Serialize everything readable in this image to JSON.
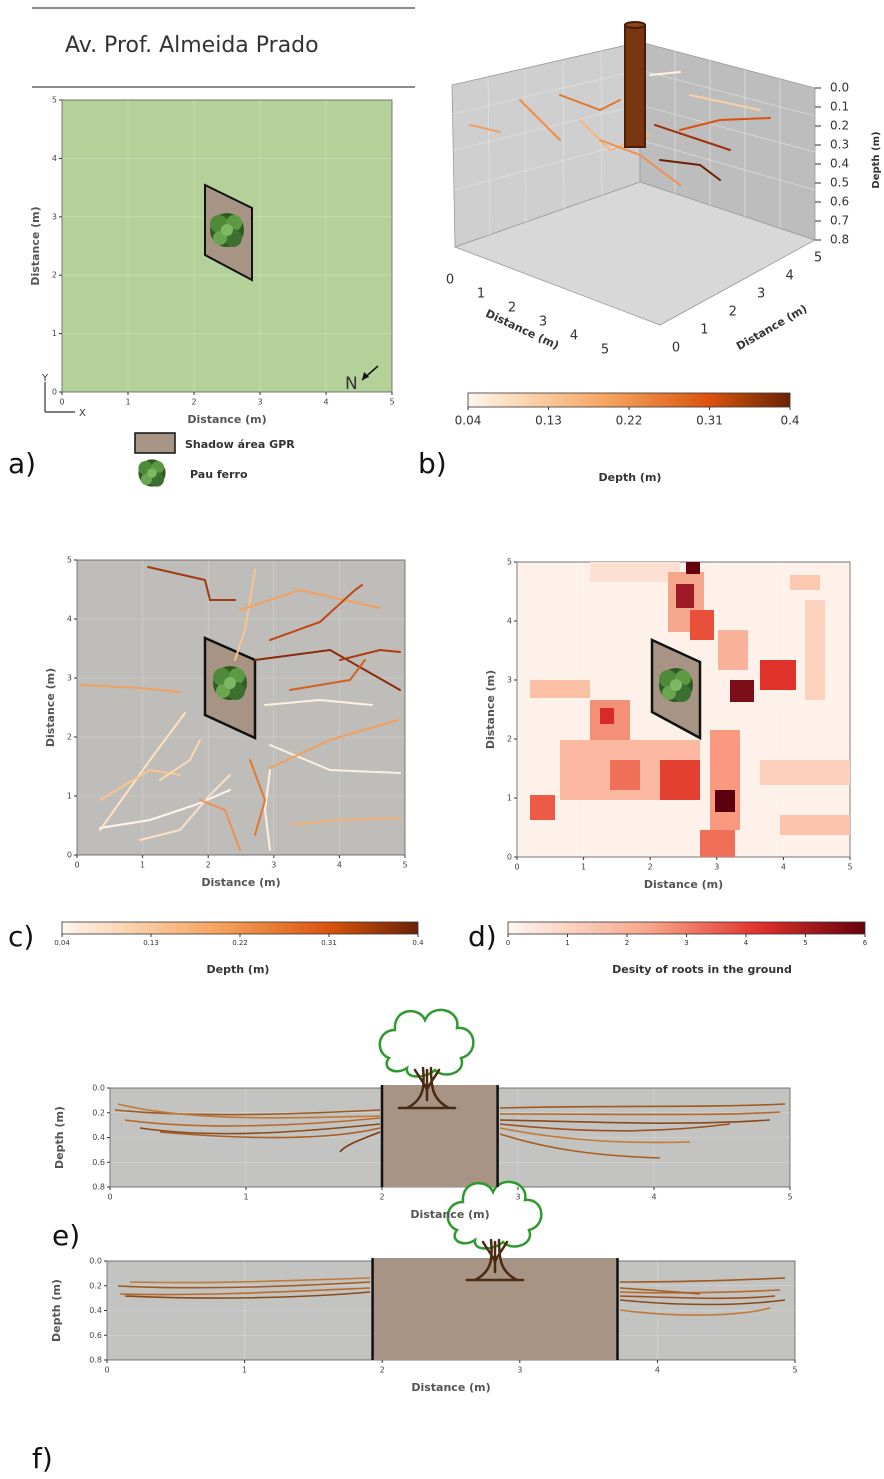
{
  "street_name": "Av. Prof. Almeida Prado",
  "chart_data": [
    {
      "type": "site-map",
      "panel_label": "a)",
      "xlabel": "Distance (m)",
      "ylabel": "Distance (m)",
      "xlim": [
        0,
        5
      ],
      "ylim": [
        0,
        5
      ],
      "xticks": [
        0,
        1,
        2,
        3,
        4,
        5
      ],
      "yticks": [
        0,
        1,
        2,
        3,
        4,
        5
      ],
      "axis_letters": [
        "X",
        "Y"
      ],
      "north": "N",
      "legend": [
        "Shadow área GPR",
        "Pau ferro"
      ]
    },
    {
      "type": "3d",
      "panel_label": "b)",
      "xlabel": "Distance (m)",
      "ylabel": "Distance (m)",
      "zlabel": "Depth (m)",
      "xticks": [
        0,
        1,
        2,
        3,
        4,
        5
      ],
      "yticks": [
        0,
        1,
        2,
        3,
        4,
        5
      ],
      "xlim": [
        0,
        5
      ],
      "ylim": [
        0,
        5
      ],
      "zlim": [
        0,
        0.8
      ],
      "zticks": [
        {
          "value": 0,
          "label": "0.0"
        },
        0.1,
        0.2,
        0.3,
        0.4,
        0.5,
        0.6,
        0.7,
        0.8
      ],
      "colorbar": {
        "label": "Depth (m)",
        "lim": [
          0.04,
          0.4
        ],
        "ticks": [
          0.04,
          0.13,
          0.22,
          0.31,
          0.4
        ]
      }
    },
    {
      "type": "root-map",
      "panel_label": "c)",
      "xlabel": "Distance (m)",
      "ylabel": "Distance (m)",
      "xlim": [
        0,
        5
      ],
      "ylim": [
        0,
        5
      ],
      "xticks": [
        0,
        1,
        2,
        3,
        4,
        5
      ],
      "yticks": [
        0,
        1,
        2,
        3,
        4,
        5
      ],
      "colorbar": {
        "label": "Depth (m)",
        "lim": [
          0.04,
          0.4
        ],
        "ticks": [
          0.04,
          0.13,
          0.22,
          0.31,
          0.4
        ]
      }
    },
    {
      "type": "density-map",
      "panel_label": "d)",
      "xlabel": "Distance (m)",
      "ylabel": "Distance (m)",
      "xlim": [
        0,
        5
      ],
      "ylim": [
        0,
        5
      ],
      "xticks": [
        0,
        1,
        2,
        3,
        4,
        5
      ],
      "yticks": [
        0,
        1,
        2,
        3,
        4,
        5
      ],
      "colorbar": {
        "label": "Desity of roots in the ground",
        "lim": [
          0,
          6
        ],
        "ticks": [
          0,
          1,
          2,
          3,
          4,
          5,
          6
        ]
      }
    },
    {
      "type": "profile",
      "panel_label": "e)",
      "xlabel": "Distance (m)",
      "ylabel": "Depth (m)",
      "xlim": [
        0,
        5
      ],
      "ylim": [
        0.8,
        0
      ],
      "xticks": [
        0,
        1,
        2,
        3,
        4,
        5
      ],
      "yticks": [
        {
          "value": 0,
          "label": "0.0"
        },
        0.2,
        0.4,
        0.6,
        0.8
      ],
      "trunk_extent": [
        2,
        2.85
      ]
    },
    {
      "type": "profile",
      "panel_label": "f)",
      "xlabel": "Distance (m)",
      "ylabel": "Depth (m)",
      "xlim": [
        0,
        5
      ],
      "ylim": [
        0.8,
        0
      ],
      "xticks": [
        0,
        1,
        2,
        3,
        4,
        5
      ],
      "yticks": [
        {
          "value": 0,
          "label": "0.0"
        },
        0.2,
        0.4,
        0.6,
        0.8
      ],
      "trunk_extent": [
        1.93,
        3.71
      ]
    }
  ]
}
